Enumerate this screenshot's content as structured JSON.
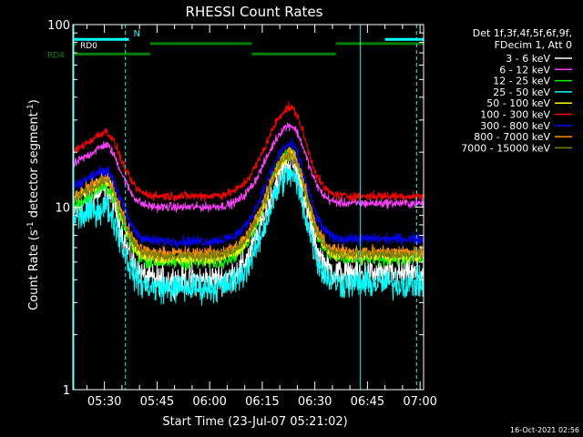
{
  "chart_data": {
    "type": "line",
    "title": "RHESSI Count Rates",
    "xlabel": "Start Time (23-Jul-07 05:21:02)",
    "ylabel": "Count Rate (s",
    "ylabel_sup": "-1",
    "ylabel_mid": " detector segment",
    "ylabel_close": ")",
    "y_scale": "log",
    "ylim": [
      1,
      100
    ],
    "y_ticks": [
      {
        "value": 1,
        "label": "1"
      },
      {
        "value": 10,
        "label": "10"
      },
      {
        "value": 100,
        "label": "100"
      }
    ],
    "xlim_minutes": [
      0,
      100
    ],
    "x_ticks": [
      {
        "minute": 9,
        "label": "05:30"
      },
      {
        "minute": 24,
        "label": "05:45"
      },
      {
        "minute": 39,
        "label": "06:00"
      },
      {
        "minute": 54,
        "label": "06:15"
      },
      {
        "minute": 69,
        "label": "06:30"
      },
      {
        "minute": 84,
        "label": "06:45"
      },
      {
        "minute": 99,
        "label": "07:00"
      }
    ],
    "legend_header": [
      "Det 1f,3f,4f,5f,6f,9f,",
      "FDecim 1, Att 0"
    ],
    "legend_position": "right",
    "series": [
      {
        "name": "3 - 6 keV",
        "color": "#ffffff",
        "base": 9.5,
        "peak1": 12.5,
        "peak2": 17.5,
        "trough": 4.0,
        "end": 4.3,
        "noise": 0.16
      },
      {
        "name": "6 - 12 keV",
        "color": "#ff40ff",
        "base": 17,
        "peak1": 22,
        "peak2": 28,
        "trough": 10.0,
        "end": 10.5,
        "noise": 0.05
      },
      {
        "name": "12 - 25 keV",
        "color": "#00ff00",
        "base": 10,
        "peak1": 13,
        "peak2": 20,
        "trough": 5.0,
        "end": 5.2,
        "noise": 0.08
      },
      {
        "name": "25 - 50 keV",
        "color": "#00ffff",
        "base": 8.5,
        "peak1": 10.0,
        "peak2": 15.0,
        "trough": 3.6,
        "end": 3.8,
        "noise": 0.16
      },
      {
        "name": "50 - 100 keV",
        "color": "#ffff00",
        "base": 11,
        "peak1": 14,
        "peak2": 19,
        "trough": 5.2,
        "end": 5.4,
        "noise": 0.07
      },
      {
        "name": "100 - 300 keV",
        "color": "#ff0000",
        "base": 20,
        "peak1": 26,
        "peak2": 35,
        "trough": 11.5,
        "end": 11.5,
        "noise": 0.05
      },
      {
        "name": "300 - 800 keV",
        "color": "#0000ff",
        "base": 13,
        "peak1": 16,
        "peak2": 22,
        "trough": 6.5,
        "end": 6.7,
        "noise": 0.06
      },
      {
        "name": "800 - 7000 keV",
        "color": "#ff8c00",
        "base": 11.5,
        "peak1": 14.5,
        "peak2": 20,
        "trough": 5.6,
        "end": 5.7,
        "noise": 0.07
      },
      {
        "name": "7000 - 15000 keV",
        "color": "#808000",
        "base": 11,
        "peak1": 14,
        "peak2": 19,
        "trough": 5.4,
        "end": 5.5,
        "noise": 0.06
      }
    ],
    "attenuator_bars": [
      {
        "label": "RD0",
        "color": "#00ffff",
        "y_value": 83,
        "segments": [
          [
            0,
            16
          ],
          [
            89,
            100
          ]
        ]
      },
      {
        "label": "RD4",
        "color": "#008000",
        "y_value": 69,
        "segments": [
          [
            0,
            22
          ],
          [
            22,
            51
          ],
          [
            51,
            75
          ],
          [
            75,
            100
          ]
        ],
        "levels": [
          0,
          1,
          0,
          1
        ]
      }
    ],
    "annotations": [
      {
        "text": "N",
        "color": "#00ffff",
        "minute": 17,
        "y_value": 88
      }
    ],
    "night_lines_solid": [
      0,
      82
    ],
    "night_lines_dashed": [
      15,
      98
    ]
  },
  "footer": {
    "timestamp": "16-Oct-2021 02:56"
  }
}
